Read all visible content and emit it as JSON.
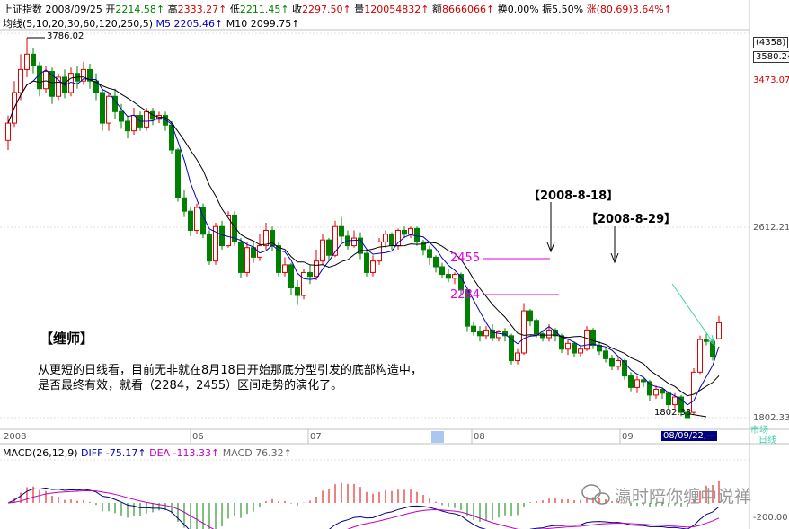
{
  "header": {
    "index_name": "上证指数",
    "date": "2008/09/25",
    "open_label": "开",
    "open": "2214.58↑",
    "high_label": "高",
    "high": "2333.27↑",
    "low_label": "低",
    "low": "2211.45↑",
    "close_label": "收",
    "close": "2297.50↑",
    "volume_label": "量",
    "volume": "120054832↑",
    "amount_label": "额",
    "amount": "8666066↑",
    "turnover_label": "换",
    "turnover": "0.00%",
    "amplitude_label": "振",
    "amplitude": "5.50%",
    "change_label": "涨",
    "change": "(80.69)3.64%↑"
  },
  "ma_legend": {
    "label": "均线(5,10,20,30,60,120,250,5)",
    "m5": "M5 2205.46↑",
    "m10": "M10 2099.75↑"
  },
  "macd_legend": {
    "label": "MACD(26,12,9)",
    "diff": "DIFF -75.17↑",
    "dea": "DEA -113.33↑",
    "macd": "MACD 76.32↑"
  },
  "annotations": {
    "high_mark": "3786.02",
    "low_mark": "1802.33",
    "date1": "【2008-8-18】",
    "date2": "【2008-8-29】",
    "level_2455": "2455",
    "level_2284": "2284",
    "author": "【缠师】",
    "note_line1": "从更短的日线看，目前无非就在8月18日开始那底分型引发的底部构造中，",
    "note_line2": "是否最终有效，就看（2284，2455）区间走势的演化了。"
  },
  "right_axis": {
    "code": "(4358)",
    "v1": "3580.24",
    "v2": "3473.07",
    "v3": "2612.21",
    "v4": "1802.33",
    "tab1": "市场",
    "tab2": "日线",
    "v_macd": "-200.00"
  },
  "time_axis": {
    "labels": [
      "2008",
      "06",
      "07",
      "08",
      "09"
    ],
    "cursor": "08/09/22,—"
  },
  "watermark": "瀛时陪你缠中说禅",
  "colors": {
    "up": "#e00000",
    "down": "#008000",
    "ma5": "#0000c0",
    "ma10": "#000000",
    "dea": "#c000c0",
    "level": "#e000e0"
  },
  "chart_data": {
    "type": "candlestick",
    "ylim": [
      1802.33,
      3786.02
    ],
    "candles": [
      {
        "o": 3250,
        "c": 3340,
        "h": 3380,
        "l": 3200
      },
      {
        "o": 3340,
        "c": 3500,
        "h": 3560,
        "l": 3320
      },
      {
        "o": 3500,
        "c": 3620,
        "h": 3700,
        "l": 3460
      },
      {
        "o": 3620,
        "c": 3700,
        "h": 3786.02,
        "l": 3580
      },
      {
        "o": 3700,
        "c": 3640,
        "h": 3730,
        "l": 3600
      },
      {
        "o": 3640,
        "c": 3520,
        "h": 3660,
        "l": 3480
      },
      {
        "o": 3520,
        "c": 3610,
        "h": 3640,
        "l": 3500
      },
      {
        "o": 3610,
        "c": 3480,
        "h": 3630,
        "l": 3440
      },
      {
        "o": 3480,
        "c": 3580,
        "h": 3600,
        "l": 3460
      },
      {
        "o": 3580,
        "c": 3500,
        "h": 3620,
        "l": 3470
      },
      {
        "o": 3500,
        "c": 3600,
        "h": 3630,
        "l": 3480
      },
      {
        "o": 3600,
        "c": 3560,
        "h": 3640,
        "l": 3520
      },
      {
        "o": 3560,
        "c": 3620,
        "h": 3660,
        "l": 3540
      },
      {
        "o": 3620,
        "c": 3560,
        "h": 3650,
        "l": 3520
      },
      {
        "o": 3560,
        "c": 3500,
        "h": 3600,
        "l": 3460
      },
      {
        "o": 3500,
        "c": 3340,
        "h": 3520,
        "l": 3300
      },
      {
        "o": 3340,
        "c": 3480,
        "h": 3500,
        "l": 3300
      },
      {
        "o": 3480,
        "c": 3400,
        "h": 3520,
        "l": 3360
      },
      {
        "o": 3400,
        "c": 3350,
        "h": 3440,
        "l": 3310
      },
      {
        "o": 3350,
        "c": 3300,
        "h": 3380,
        "l": 3260
      },
      {
        "o": 3300,
        "c": 3380,
        "h": 3420,
        "l": 3280
      },
      {
        "o": 3380,
        "c": 3320,
        "h": 3400,
        "l": 3300
      },
      {
        "o": 3320,
        "c": 3400,
        "h": 3420,
        "l": 3300
      },
      {
        "o": 3400,
        "c": 3360,
        "h": 3420,
        "l": 3330
      },
      {
        "o": 3360,
        "c": 3380,
        "h": 3400,
        "l": 3340
      },
      {
        "o": 3380,
        "c": 3330,
        "h": 3400,
        "l": 3300
      },
      {
        "o": 3330,
        "c": 3200,
        "h": 3350,
        "l": 3180
      },
      {
        "o": 3200,
        "c": 2950,
        "h": 3210,
        "l": 2930
      },
      {
        "o": 2950,
        "c": 2880,
        "h": 2990,
        "l": 2850
      },
      {
        "o": 2880,
        "c": 2780,
        "h": 2900,
        "l": 2750
      },
      {
        "o": 2780,
        "c": 2900,
        "h": 2920,
        "l": 2760
      },
      {
        "o": 2900,
        "c": 2760,
        "h": 2920,
        "l": 2740
      },
      {
        "o": 2760,
        "c": 2620,
        "h": 2780,
        "l": 2600
      },
      {
        "o": 2620,
        "c": 2800,
        "h": 2820,
        "l": 2600
      },
      {
        "o": 2800,
        "c": 2700,
        "h": 2830,
        "l": 2680
      },
      {
        "o": 2700,
        "c": 2860,
        "h": 2880,
        "l": 2690
      },
      {
        "o": 2860,
        "c": 2720,
        "h": 2880,
        "l": 2700
      },
      {
        "o": 2720,
        "c": 2560,
        "h": 2740,
        "l": 2530
      },
      {
        "o": 2560,
        "c": 2690,
        "h": 2720,
        "l": 2540
      },
      {
        "o": 2690,
        "c": 2640,
        "h": 2720,
        "l": 2610
      },
      {
        "o": 2640,
        "c": 2700,
        "h": 2760,
        "l": 2620
      },
      {
        "o": 2700,
        "c": 2780,
        "h": 2820,
        "l": 2680
      },
      {
        "o": 2780,
        "c": 2700,
        "h": 2800,
        "l": 2670
      },
      {
        "o": 2700,
        "c": 2560,
        "h": 2720,
        "l": 2540
      },
      {
        "o": 2560,
        "c": 2600,
        "h": 2640,
        "l": 2540
      },
      {
        "o": 2600,
        "c": 2480,
        "h": 2610,
        "l": 2440
      },
      {
        "o": 2480,
        "c": 2440,
        "h": 2520,
        "l": 2390
      },
      {
        "o": 2440,
        "c": 2560,
        "h": 2580,
        "l": 2420
      },
      {
        "o": 2560,
        "c": 2540,
        "h": 2600,
        "l": 2500
      },
      {
        "o": 2540,
        "c": 2620,
        "h": 2680,
        "l": 2520
      },
      {
        "o": 2620,
        "c": 2730,
        "h": 2760,
        "l": 2600
      },
      {
        "o": 2730,
        "c": 2650,
        "h": 2740,
        "l": 2620
      },
      {
        "o": 2650,
        "c": 2800,
        "h": 2830,
        "l": 2640
      },
      {
        "o": 2800,
        "c": 2750,
        "h": 2850,
        "l": 2720
      },
      {
        "o": 2750,
        "c": 2700,
        "h": 2780,
        "l": 2680
      },
      {
        "o": 2700,
        "c": 2740,
        "h": 2780,
        "l": 2690
      },
      {
        "o": 2740,
        "c": 2660,
        "h": 2770,
        "l": 2630
      },
      {
        "o": 2660,
        "c": 2560,
        "h": 2680,
        "l": 2540
      },
      {
        "o": 2560,
        "c": 2620,
        "h": 2650,
        "l": 2540
      },
      {
        "o": 2620,
        "c": 2720,
        "h": 2740,
        "l": 2600
      },
      {
        "o": 2720,
        "c": 2760,
        "h": 2780,
        "l": 2690
      },
      {
        "o": 2760,
        "c": 2700,
        "h": 2770,
        "l": 2680
      },
      {
        "o": 2700,
        "c": 2780,
        "h": 2790,
        "l": 2680
      },
      {
        "o": 2780,
        "c": 2760,
        "h": 2800,
        "l": 2740
      },
      {
        "o": 2760,
        "c": 2790,
        "h": 2800,
        "l": 2740
      },
      {
        "o": 2790,
        "c": 2720,
        "h": 2800,
        "l": 2700
      },
      {
        "o": 2720,
        "c": 2680,
        "h": 2730,
        "l": 2650
      },
      {
        "o": 2680,
        "c": 2640,
        "h": 2700,
        "l": 2600
      },
      {
        "o": 2640,
        "c": 2590,
        "h": 2650,
        "l": 2560
      },
      {
        "o": 2590,
        "c": 2550,
        "h": 2610,
        "l": 2530
      },
      {
        "o": 2550,
        "c": 2530,
        "h": 2580,
        "l": 2510
      },
      {
        "o": 2530,
        "c": 2550,
        "h": 2560,
        "l": 2500
      },
      {
        "o": 2550,
        "c": 2470,
        "h": 2560,
        "l": 2440
      },
      {
        "o": 2470,
        "c": 2280,
        "h": 2480,
        "l": 2250
      },
      {
        "o": 2280,
        "c": 2250,
        "h": 2300,
        "l": 2230
      },
      {
        "o": 2250,
        "c": 2230,
        "h": 2280,
        "l": 2200
      },
      {
        "o": 2230,
        "c": 2260,
        "h": 2280,
        "l": 2210
      },
      {
        "o": 2260,
        "c": 2220,
        "h": 2290,
        "l": 2200
      },
      {
        "o": 2220,
        "c": 2250,
        "h": 2260,
        "l": 2200
      },
      {
        "o": 2250,
        "c": 2230,
        "h": 2270,
        "l": 2200
      },
      {
        "o": 2230,
        "c": 2100,
        "h": 2240,
        "l": 2080
      },
      {
        "o": 2100,
        "c": 2140,
        "h": 2160,
        "l": 2080
      },
      {
        "o": 2140,
        "c": 2360,
        "h": 2400,
        "l": 2130
      },
      {
        "o": 2360,
        "c": 2310,
        "h": 2370,
        "l": 2280
      },
      {
        "o": 2310,
        "c": 2240,
        "h": 2320,
        "l": 2220
      },
      {
        "o": 2240,
        "c": 2220,
        "h": 2260,
        "l": 2200
      },
      {
        "o": 2220,
        "c": 2260,
        "h": 2290,
        "l": 2200
      },
      {
        "o": 2260,
        "c": 2230,
        "h": 2270,
        "l": 2200
      },
      {
        "o": 2230,
        "c": 2160,
        "h": 2240,
        "l": 2140
      },
      {
        "o": 2160,
        "c": 2190,
        "h": 2210,
        "l": 2130
      },
      {
        "o": 2190,
        "c": 2140,
        "h": 2200,
        "l": 2120
      },
      {
        "o": 2140,
        "c": 2160,
        "h": 2180,
        "l": 2120
      },
      {
        "o": 2160,
        "c": 2260,
        "h": 2280,
        "l": 2150
      },
      {
        "o": 2260,
        "c": 2180,
        "h": 2270,
        "l": 2160
      },
      {
        "o": 2180,
        "c": 2150,
        "h": 2200,
        "l": 2130
      },
      {
        "o": 2150,
        "c": 2110,
        "h": 2170,
        "l": 2090
      },
      {
        "o": 2110,
        "c": 2070,
        "h": 2130,
        "l": 2050
      },
      {
        "o": 2070,
        "c": 2100,
        "h": 2120,
        "l": 2050
      },
      {
        "o": 2100,
        "c": 2020,
        "h": 2110,
        "l": 2000
      },
      {
        "o": 2020,
        "c": 1960,
        "h": 2040,
        "l": 1940
      },
      {
        "o": 1960,
        "c": 2000,
        "h": 2020,
        "l": 1930
      },
      {
        "o": 2000,
        "c": 1990,
        "h": 2010,
        "l": 1960
      },
      {
        "o": 1990,
        "c": 1920,
        "h": 2000,
        "l": 1890
      },
      {
        "o": 1920,
        "c": 1950,
        "h": 1970,
        "l": 1900
      },
      {
        "o": 1950,
        "c": 1930,
        "h": 1960,
        "l": 1900
      },
      {
        "o": 1930,
        "c": 1870,
        "h": 1940,
        "l": 1850
      },
      {
        "o": 1870,
        "c": 1910,
        "h": 1930,
        "l": 1850
      },
      {
        "o": 1910,
        "c": 1830,
        "h": 1920,
        "l": 1810
      },
      {
        "o": 1830,
        "c": 1802.33,
        "h": 1850,
        "l": 1802.33
      },
      {
        "o": 1830,
        "c": 2040,
        "h": 2060,
        "l": 1820
      },
      {
        "o": 2040,
        "c": 2210,
        "h": 2230,
        "l": 2030
      },
      {
        "o": 2210,
        "c": 2200,
        "h": 2240,
        "l": 2180
      },
      {
        "o": 2200,
        "c": 2120,
        "h": 2210,
        "l": 2100
      },
      {
        "o": 2214.58,
        "c": 2297.5,
        "h": 2333.27,
        "l": 2211.45
      }
    ]
  }
}
